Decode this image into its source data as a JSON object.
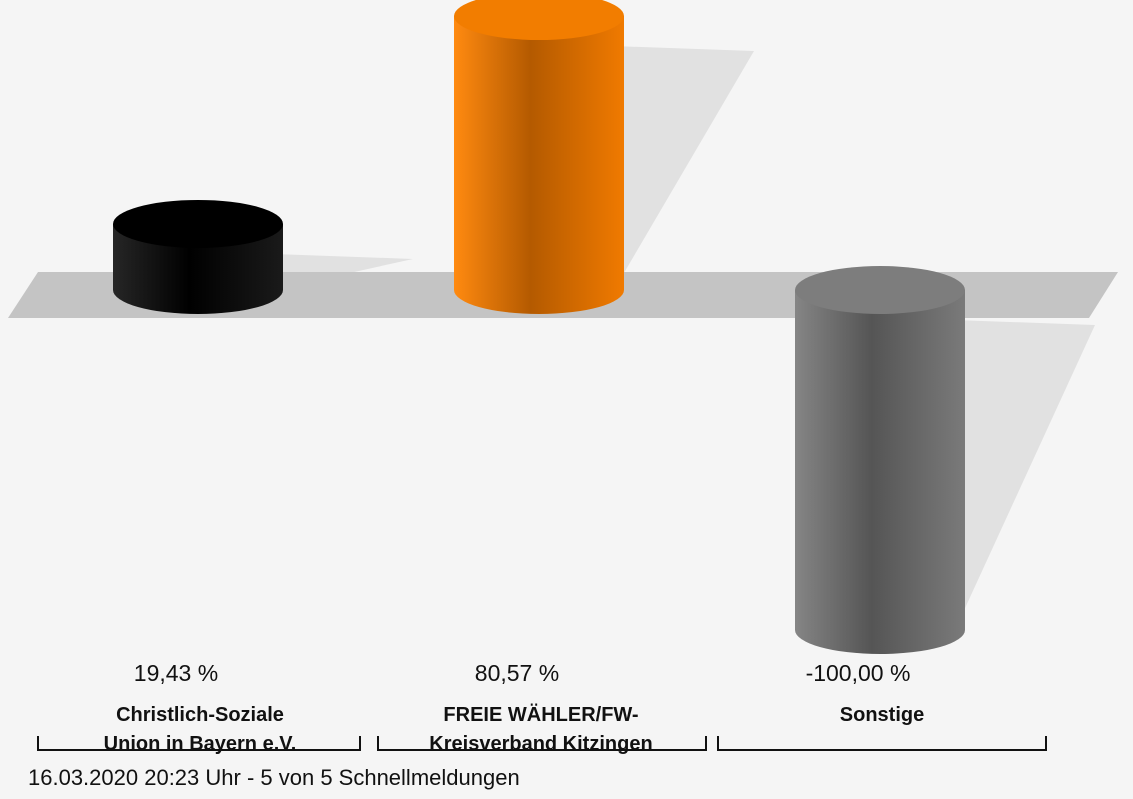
{
  "chart_data": {
    "type": "bar",
    "style": "3d-cylinder",
    "categories": [
      "Christlich-Soziale Union in Bayern e.V.",
      "FREIE WÄHLER/FW-Kreisverband Kitzingen",
      "Sonstige"
    ],
    "category_lines": [
      [
        "Christlich-Soziale",
        "Union in Bayern e.V."
      ],
      [
        "FREIE WÄHLER/FW-",
        "Kreisverband Kitzingen"
      ],
      [
        "Sonstige"
      ]
    ],
    "values": [
      19.43,
      80.57,
      -100.0
    ],
    "value_labels": [
      "19,43 %",
      "80,57 %",
      "-100,00 %"
    ],
    "colors": [
      "#111111",
      "#f27d00",
      "#777777"
    ],
    "ylim": [
      -100,
      80.57
    ],
    "grid": false,
    "legend": "none",
    "title": "",
    "xlabel": "",
    "ylabel": ""
  },
  "footer": {
    "text": "16.03.2020 20:23 Uhr - 5 von 5 Schnellmeldungen"
  }
}
